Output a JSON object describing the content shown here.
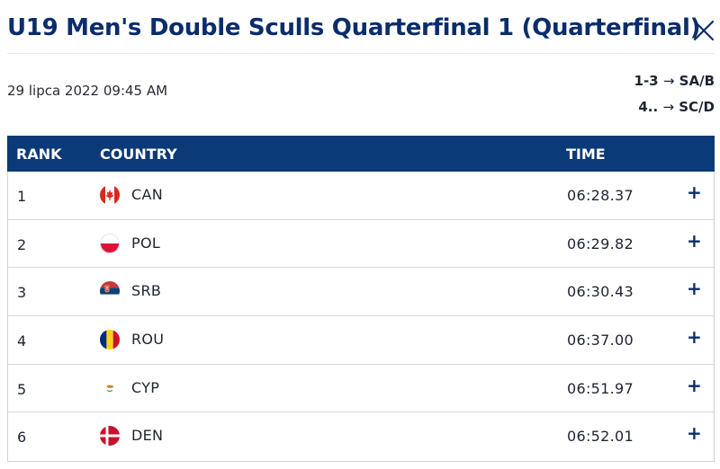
{
  "header": {
    "title": "U19 Men's Double Sculls Quarterfinal 1 (Quarterfinal)",
    "close_icon": "close-icon"
  },
  "meta": {
    "date": "29 lipca 2022 09:45 AM",
    "progression": [
      {
        "range": "1-3",
        "arrow": "→",
        "target": "SA/B"
      },
      {
        "range": "4..",
        "arrow": "→",
        "target": "SC/D"
      }
    ]
  },
  "table": {
    "headers": {
      "rank": "RANK",
      "country": "COUNTRY",
      "time": "TIME"
    },
    "rows": [
      {
        "rank": "1",
        "country": "CAN",
        "flag": "flag-canada-icon",
        "time": "06:28.37",
        "expand": "+"
      },
      {
        "rank": "2",
        "country": "POL",
        "flag": "flag-poland-icon",
        "time": "06:29.82",
        "expand": "+"
      },
      {
        "rank": "3",
        "country": "SRB",
        "flag": "flag-serbia-icon",
        "time": "06:30.43",
        "expand": "+"
      },
      {
        "rank": "4",
        "country": "ROU",
        "flag": "flag-romania-icon",
        "time": "06:37.00",
        "expand": "+"
      },
      {
        "rank": "5",
        "country": "CYP",
        "flag": "flag-cyprus-icon",
        "time": "06:51.97",
        "expand": "+"
      },
      {
        "rank": "6",
        "country": "DEN",
        "flag": "flag-denmark-icon",
        "time": "06:52.01",
        "expand": "+"
      }
    ]
  },
  "colors": {
    "title": "#0b2d6b",
    "header_bg": "#0b3a78",
    "row_border": "#d5d9e0"
  }
}
